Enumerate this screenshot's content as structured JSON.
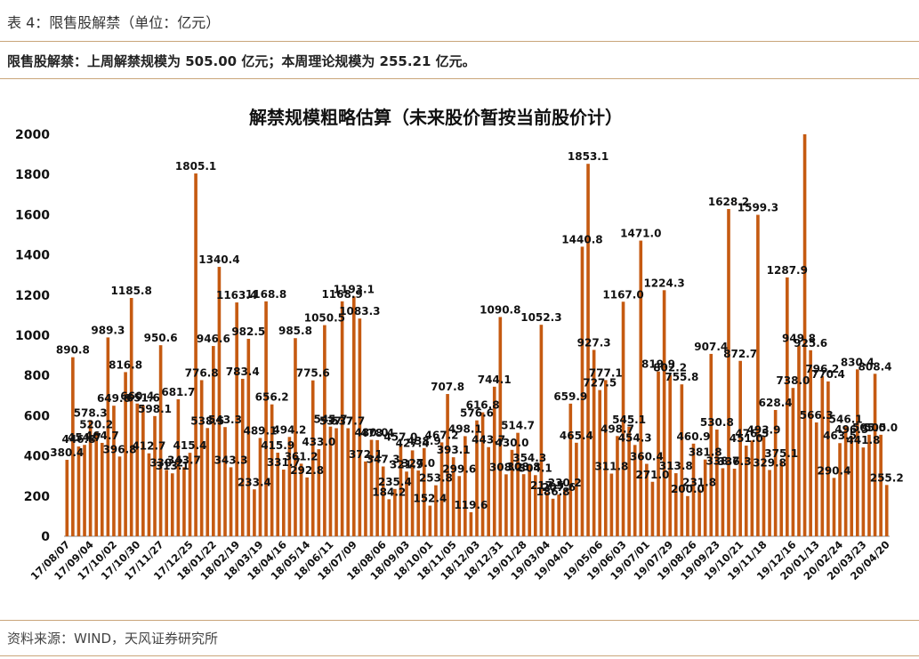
{
  "header": {
    "table_title": "表 4：限售股解禁（单位：亿元）",
    "summary": "限售股解禁：上周解禁规模为 505.00 亿元；本周理论规模为 255.21 亿元。"
  },
  "footer": {
    "source": "资料来源：WIND，天风证券研究所"
  },
  "colors": {
    "bar": "#C55A11",
    "rule": "#C9A57A"
  },
  "chart_data": {
    "type": "bar",
    "title": "解禁规模粗略估算（未来股价暂按当前股价计）",
    "ylim": [
      0,
      2000
    ],
    "yticks": [
      0,
      200,
      400,
      600,
      800,
      1000,
      1200,
      1400,
      1600,
      1800,
      2000
    ],
    "xlabel": "",
    "ylabel": "",
    "x_tick_labels": [
      "17/08/07",
      "17/09/04",
      "17/10/02",
      "17/10/30",
      "17/11/27",
      "17/12/25",
      "18/01/22",
      "18/02/19",
      "18/03/19",
      "18/04/16",
      "18/05/14",
      "18/06/11",
      "18/07/09",
      "18/08/06",
      "18/09/03",
      "18/10/01",
      "18/11/05",
      "18/12/03",
      "18/12/31",
      "19/01/28",
      "19/03/04",
      "19/04/01",
      "19/05/06",
      "19/06/03",
      "19/07/01",
      "19/07/29",
      "19/08/26",
      "19/09/23",
      "19/10/21",
      "19/11/18",
      "19/12/16",
      "20/01/13",
      "20/02/24",
      "20/03/23",
      "20/04/20"
    ],
    "values": [
      380.4,
      890.8,
      446.8,
      454.7,
      578.3,
      520.2,
      464.7,
      989.3,
      649.6,
      396.8,
      816.8,
      1185.8,
      660.4,
      651.6,
      412.7,
      598.1,
      950.6,
      330.2,
      313.1,
      681.7,
      343.7,
      415.4,
      1805.1,
      776.8,
      538.5,
      946.6,
      1340.4,
      543.3,
      343.3,
      1163.4,
      783.4,
      982.5,
      233.4,
      489.1,
      1168.8,
      656.2,
      415.9,
      331.7,
      494.2,
      985.8,
      361.2,
      292.8,
      775.6,
      433.0,
      1050.5,
      545.7,
      537.7,
      1168.9,
      537.7,
      1193.1,
      1083.3,
      372.1,
      480.0,
      478.4,
      347.3,
      184.2,
      235.4,
      457.0,
      321.9,
      427.4,
      327.0,
      438.9,
      152.4,
      253.8,
      467.2,
      707.8,
      393.1,
      299.6,
      498.1,
      119.6,
      576.6,
      616.8,
      443.7,
      744.1,
      1090.8,
      308.2,
      430.0,
      514.7,
      308.8,
      354.3,
      304.1,
      1052.3,
      217.5,
      186.8,
      207.6,
      230.2,
      659.9,
      465.4,
      1440.8,
      1853.1,
      927.3,
      727.5,
      777.1,
      311.8,
      498.7,
      1167.0,
      545.1,
      454.3,
      1471.0,
      360.4,
      271.0,
      819.9,
      1224.3,
      802.2,
      313.8,
      755.8,
      200.0,
      460.9,
      231.8,
      381.8,
      907.4,
      530.8,
      338.7,
      1628.2,
      336.3,
      872.7,
      451.0,
      476.5,
      1599.3,
      493.9,
      329.8,
      628.4,
      375.1,
      1287.9,
      738.0,
      949.8,
      2000.0,
      925.6,
      566.3,
      796.2,
      770.4,
      290.4,
      463.5,
      546.1,
      496.5,
      830.4,
      441.8,
      505.0,
      808.4,
      505.0,
      255.2
    ],
    "label_texts": [
      "380.4",
      "890.8",
      "446.8",
      "454.7",
      "578.3",
      "520.2",
      "464.7",
      "989.3",
      "649.6",
      "396.8",
      "816.8",
      "1185.8",
      "660.4",
      "651.6",
      "412.7",
      "598.1",
      "950.6",
      "330.2",
      "313.1",
      "681.7",
      "343.7",
      "415.4",
      "1805.1",
      "776.8",
      "538.5",
      "946.6",
      "1340.4",
      "543.3",
      "343.3",
      "1163.4",
      "783.4",
      "982.5",
      "233.4",
      "489.1",
      "1168.8",
      "656.2",
      "415.9",
      "331.7",
      "494.2",
      "985.8",
      "361.2",
      "292.8",
      "775.6",
      "433.0",
      "1050.5",
      "545.7",
      "537.7",
      "1168.9",
      "537.7",
      "1193.1",
      "1083.3",
      "372.1",
      "480.0",
      "478.4",
      "347.3",
      "184.2",
      "235.4",
      "457.0",
      "321.9",
      "427.4",
      "327.0",
      "438.9",
      "152.4",
      "253.8",
      "467.2",
      "707.8",
      "393.1",
      "299.6",
      "498.1",
      "119.6",
      "576.6",
      "616.8",
      "443.7",
      "744.1",
      "1090.8",
      "308.2",
      "430.0",
      "514.7",
      "308.8",
      "354.3",
      "304.1",
      "1052.3",
      "217.5",
      "186.8",
      "207.6",
      "230.2",
      "659.9",
      "465.4",
      "1440.8",
      "1853.1",
      "927.3",
      "727.5",
      "777.1",
      "311.8",
      "498.7",
      "1167.0",
      "545.1",
      "454.3",
      "1471.0",
      "360.4",
      "271.0",
      "819.9",
      "1224.3",
      "802.2",
      "313.8",
      "755.8",
      "200.0",
      "460.9",
      "231.8",
      "381.8",
      "907.4",
      "530.8",
      "338.7",
      "1628.2",
      "336.3",
      "872.7",
      "451.0",
      "476.5",
      "1599.3",
      "493.9",
      "329.8",
      "628.4",
      "375.1",
      "1287.9",
      "738.0",
      "949.8",
      "",
      "925.6",
      "566.3",
      "796.2",
      "770.4",
      "290.4",
      "463.5",
      "546.1",
      "496.5",
      "830.4",
      "441.8",
      "505.0",
      "808.4",
      "505.0",
      "255.2"
    ]
  }
}
